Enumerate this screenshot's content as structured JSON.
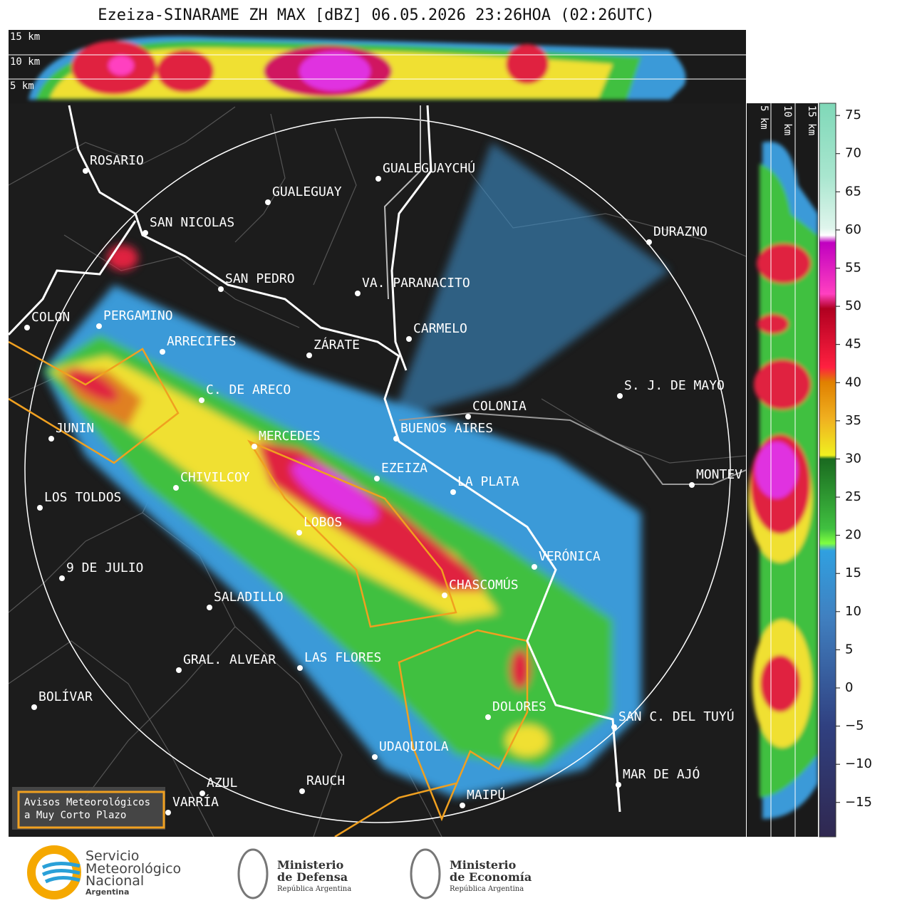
{
  "title": "Ezeiza-SINARAME ZH MAX [dBZ] 06.05.2026 23:26HOA (02:26UTC)",
  "cross_section_top": {
    "labels": [
      "15 km",
      "10 km",
      "5 km"
    ]
  },
  "cross_section_right": {
    "labels": [
      "5 km",
      "10 km",
      "15 km"
    ]
  },
  "colorbar": {
    "lim": [
      -19.5,
      76.6
    ],
    "ticks": [
      75,
      70,
      65,
      60,
      55,
      50,
      45,
      40,
      35,
      30,
      25,
      20,
      15,
      10,
      5,
      0,
      {
        "value": -5,
        "label": "−5"
      },
      {
        "value": -10,
        "label": "−10"
      },
      {
        "value": -15,
        "label": "−15"
      }
    ]
  },
  "cities": [
    "ROSARIO",
    "GUALEGUAY",
    "GUALEGUAYCHÚ",
    "SAN NICOLAS",
    "DURAZNO",
    "SAN PEDRO",
    "VA. PARANACITO",
    "COLON",
    "PERGAMINO",
    "CARMELO",
    "ARRECIFES",
    "ZÁRATE",
    "S. J. DE MAYO",
    "C. DE ARECO",
    "COLONIA",
    "BUENOS AIRES",
    "JUNIN",
    "MERCEDES",
    "EZEIZA",
    "CHIVILCOY",
    "LA PLATA",
    "MONTEV",
    "LOS TOLDOS",
    "LOBOS",
    "VERÓNICA",
    "9 DE JULIO",
    "CHASCOMÚS",
    "SALADILLO",
    "GRAL. ALVEAR",
    "LAS FLORES",
    "BOLÍVAR",
    "DOLORES",
    "SAN C. DEL TUYÚ",
    "UDAQUIOLA",
    "MAR DE AJÓ",
    "AZUL",
    "RAUCH",
    "VARRÍA",
    "MAIPÚ"
  ],
  "notice": [
    "Avisos Meteorológicos",
    "a Muy Corto Plazo"
  ],
  "footer": {
    "smn": [
      "Servicio",
      "Meteorológico",
      "Nacional",
      "Argentina"
    ],
    "defensa": [
      "Ministerio",
      "de Defensa",
      "República Argentina"
    ],
    "economia": [
      "Ministerio",
      "de Economía",
      "República Argentina"
    ]
  }
}
